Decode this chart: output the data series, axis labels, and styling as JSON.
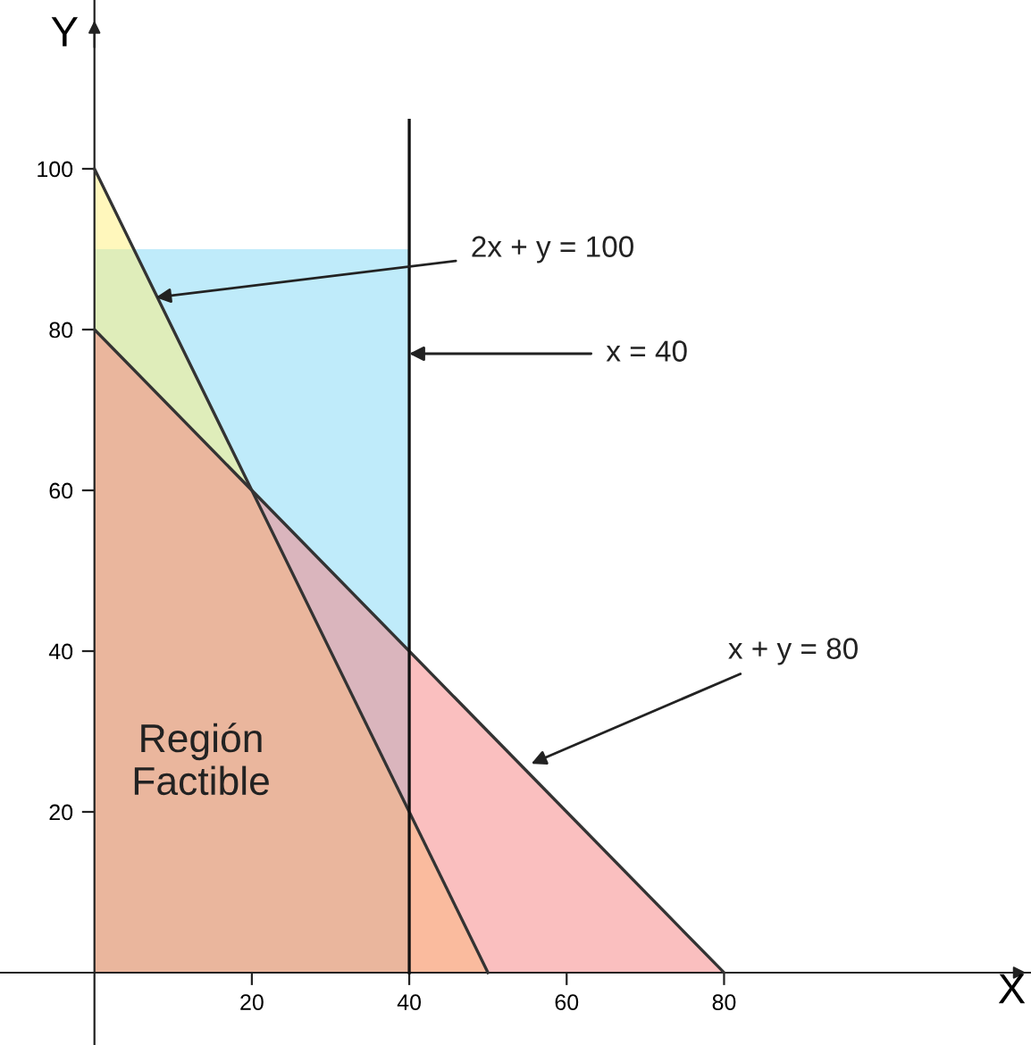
{
  "chart_data": {
    "type": "area",
    "xlabel": "X",
    "ylabel": "Y",
    "xlim": [
      -12,
      119
    ],
    "ylim": [
      -9,
      121
    ],
    "xticks": [
      20,
      40,
      60,
      80
    ],
    "yticks": [
      20,
      40,
      60,
      80,
      100
    ],
    "line_style": "solid",
    "series": [
      {
        "color": "#7fd8f5",
        "x": [
          0,
          40
        ],
        "values": [
          90,
          90
        ],
        "line_style": "none"
      },
      {
        "color": "#fff07a",
        "x": [
          0,
          50
        ],
        "values": [
          100,
          0
        ]
      },
      {
        "color": "#f57f7f",
        "x": [
          0,
          80
        ],
        "values": [
          80,
          0
        ]
      }
    ],
    "ref_lines": [
      {
        "axis": "x",
        "value": 40,
        "color": "#111111"
      }
    ],
    "annotations": [
      {
        "text": "2x + y = 100",
        "x": 7.8,
        "y": 84
      },
      {
        "text": "x = 40",
        "x": 40,
        "y": 77
      },
      {
        "text": "x + y = 80",
        "x": 55.5,
        "y": 26
      },
      "Región\nFactible"
    ]
  }
}
